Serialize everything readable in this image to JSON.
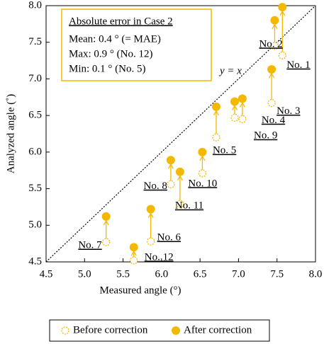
{
  "chart_data": {
    "type": "scatter",
    "x_label": "Measured angle (°)",
    "y_label": "Analyzed angle (˚)",
    "xlim": [
      4.5,
      8.0
    ],
    "ylim": [
      4.5,
      8.0
    ],
    "xticks": [
      4.5,
      {
        "value": 5,
        "label": "5.0"
      },
      5.5,
      {
        "value": 6,
        "label": "6.0"
      },
      6.5,
      {
        "value": 7,
        "label": "7.0"
      },
      7.5,
      {
        "value": 8,
        "label": "8.0"
      }
    ],
    "yticks": [
      4.5,
      {
        "value": 5,
        "label": "5.0"
      },
      5.5,
      {
        "value": 6,
        "label": "6.0"
      },
      6.5,
      {
        "value": 7,
        "label": "7.0"
      },
      7.5,
      {
        "value": 8,
        "label": "8.0"
      }
    ],
    "point_labels": [
      "No. 1",
      "No. 2",
      "No. 3",
      "No. 4",
      "No. 9",
      "No. 5",
      "No. 10",
      "No. 8",
      "No. 11",
      "No. 6",
      "No. 7",
      "No. 12"
    ],
    "x": [
      7.57,
      7.47,
      7.43,
      7.05,
      6.95,
      6.71,
      6.53,
      6.12,
      6.24,
      5.86,
      5.28,
      5.64
    ],
    "series": [
      {
        "name": "Before correction",
        "color": "#f5b800",
        "values": [
          7.32,
          7.45,
          6.67,
          6.45,
          6.47,
          6.2,
          5.71,
          5.56,
          5.29,
          4.78,
          4.77,
          4.52
        ]
      },
      {
        "name": "After correction",
        "color": "#f5b800",
        "values": [
          7.98,
          7.8,
          7.13,
          6.73,
          6.69,
          6.62,
          6.0,
          5.89,
          5.73,
          5.22,
          5.12,
          4.7
        ]
      }
    ],
    "reference_line_label": "y = x",
    "annotation": {
      "title": "Absolute error in Case 2",
      "lines": [
        "Mean: 0.4 ° (= MAE)",
        "Max: 0.9 ° (No. 12)",
        "Min: 0.1 ° (No. 5)"
      ]
    }
  }
}
